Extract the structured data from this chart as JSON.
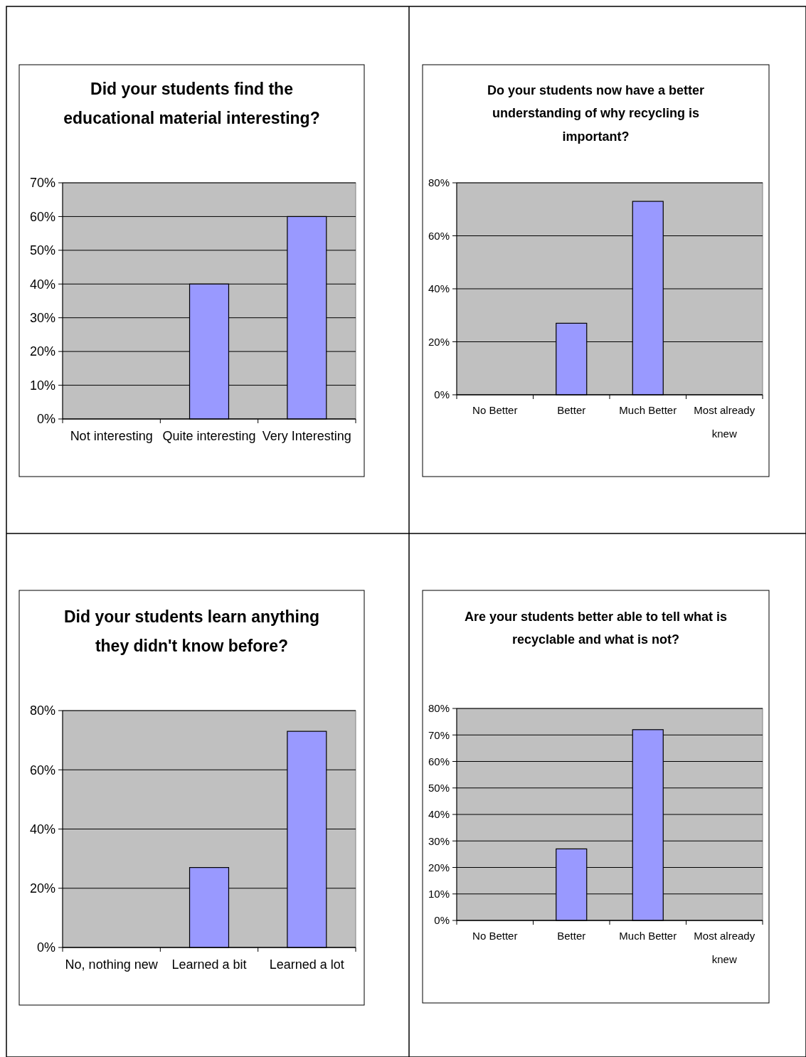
{
  "chart_data": [
    {
      "type": "bar",
      "title": "Did your students find the educational material interesting?",
      "categories": [
        "Not interesting",
        "Quite interesting",
        "Very Interesting"
      ],
      "values": [
        0,
        40,
        60
      ],
      "color": "#9999ff",
      "ylim": [
        0,
        70
      ],
      "yticks": [
        {
          "value": 0,
          "label": "0%"
        },
        {
          "value": 10,
          "label": "10%"
        },
        {
          "value": 20,
          "label": "20%"
        },
        {
          "value": 30,
          "label": "30%"
        },
        {
          "value": 40,
          "label": "40%"
        },
        {
          "value": 50,
          "label": "50%"
        },
        {
          "value": 60,
          "label": "60%"
        },
        {
          "value": 70,
          "label": "70%"
        }
      ],
      "grid": "y"
    },
    {
      "type": "bar",
      "title": "Do your students now have a better understanding of why recycling is important?",
      "categories": [
        "No Better",
        "Better",
        "Much Better",
        "Most already knew"
      ],
      "values": [
        0,
        27,
        73,
        0
      ],
      "color": "#9999ff",
      "ylim": [
        0,
        80
      ],
      "yticks": [
        {
          "value": 0,
          "label": "0%"
        },
        {
          "value": 20,
          "label": "20%"
        },
        {
          "value": 40,
          "label": "40%"
        },
        {
          "value": 60,
          "label": "60%"
        },
        {
          "value": 80,
          "label": "80%"
        }
      ],
      "grid": "y"
    },
    {
      "type": "bar",
      "title": "Did your students learn anything they didn't know before?",
      "categories": [
        "No, nothing new",
        "Learned a bit",
        "Learned a lot"
      ],
      "values": [
        0,
        27,
        73
      ],
      "color": "#9999ff",
      "ylim": [
        0,
        80
      ],
      "yticks": [
        {
          "value": 0,
          "label": "0%"
        },
        {
          "value": 20,
          "label": "20%"
        },
        {
          "value": 40,
          "label": "40%"
        },
        {
          "value": 60,
          "label": "60%"
        },
        {
          "value": 80,
          "label": "80%"
        }
      ],
      "grid": "y"
    },
    {
      "type": "bar",
      "title": "Are your students better able to tell what is recyclable and what is not?",
      "categories": [
        "No Better",
        "Better",
        "Much Better",
        "Most already knew"
      ],
      "values": [
        0,
        27,
        72,
        0
      ],
      "color": "#9999ff",
      "ylim": [
        0,
        80
      ],
      "yticks": [
        {
          "value": 0,
          "label": "0%"
        },
        {
          "value": 10,
          "label": "10%"
        },
        {
          "value": 20,
          "label": "20%"
        },
        {
          "value": 30,
          "label": "30%"
        },
        {
          "value": 40,
          "label": "40%"
        },
        {
          "value": 50,
          "label": "50%"
        },
        {
          "value": 60,
          "label": "60%"
        },
        {
          "value": 70,
          "label": "70%"
        },
        {
          "value": 80,
          "label": "80%"
        }
      ],
      "grid": "y"
    }
  ]
}
